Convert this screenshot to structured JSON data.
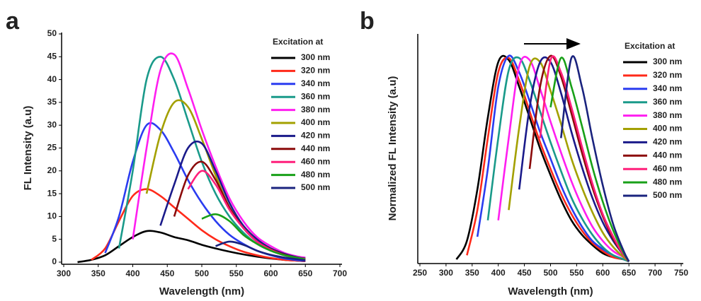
{
  "chart_data": [
    {
      "type": "line",
      "panel_label": "a",
      "x_label": "Wavelength (nm)",
      "y_label": "FL Intensity (a.u)",
      "legend_title": "Excitation at",
      "legend": "upper right",
      "x": [
        300,
        320,
        340,
        360,
        380,
        400,
        420,
        440,
        460,
        480,
        500,
        520,
        540,
        560,
        580,
        600,
        620,
        640,
        650
      ],
      "xlim": [
        300,
        700
      ],
      "xticks": [
        300,
        350,
        400,
        450,
        500,
        550,
        600,
        650,
        700
      ],
      "ylim": [
        0,
        50
      ],
      "yticks": [
        0,
        5,
        10,
        15,
        20,
        25,
        30,
        35,
        40,
        45,
        50
      ],
      "series": [
        {
          "name": "300 nm",
          "color": "#000000",
          "values": [
            null,
            0,
            0.5,
            1.5,
            3.5,
            5.5,
            6.8,
            6.5,
            5.5,
            4.8,
            3.8,
            3,
            2.3,
            1.7,
            1.2,
            0.8,
            0.5,
            0.3,
            0.2
          ]
        },
        {
          "name": "320 nm",
          "color": "#ff2a1a",
          "values": [
            null,
            null,
            0.5,
            3,
            9,
            14.5,
            16,
            14.5,
            12,
            9.5,
            7,
            5,
            3.5,
            2.3,
            1.5,
            0.9,
            0.5,
            0.3,
            0.2
          ]
        },
        {
          "name": "340 nm",
          "color": "#2a3cf0",
          "values": [
            null,
            null,
            null,
            2,
            10,
            22,
            30,
            29,
            24,
            18,
            13,
            9,
            6,
            4,
            2.5,
            1.5,
            0.8,
            0.4,
            0.3
          ]
        },
        {
          "name": "360 nm",
          "color": "#1a9a8a",
          "values": [
            null,
            null,
            null,
            null,
            3,
            20,
            40,
            45,
            40,
            31,
            22,
            15,
            10,
            6.5,
            4,
            2.5,
            1.5,
            0.8,
            0.6
          ]
        },
        {
          "name": "380 nm",
          "color": "#ff1ef0",
          "values": [
            null,
            null,
            null,
            null,
            null,
            5,
            25,
            42,
            45.5,
            38,
            29,
            21,
            14,
            9,
            5.5,
            3.5,
            2,
            1.2,
            1
          ]
        },
        {
          "name": "400 nm",
          "color": "#a3a000",
          "values": [
            null,
            null,
            null,
            null,
            null,
            null,
            15,
            28,
            35,
            34,
            27,
            19,
            12,
            8,
            5,
            3,
            1.8,
            1,
            0.8
          ]
        },
        {
          "name": "420 nm",
          "color": "#1a1a8a",
          "values": [
            null,
            null,
            null,
            null,
            null,
            null,
            null,
            8,
            17,
            25,
            26,
            20,
            13,
            8,
            5,
            3,
            1.8,
            1,
            0.8
          ]
        },
        {
          "name": "440 nm",
          "color": "#8b0a0a",
          "values": [
            null,
            null,
            null,
            null,
            null,
            null,
            null,
            null,
            10,
            19,
            22,
            18,
            12,
            7.5,
            4.5,
            2.8,
            1.6,
            0.9,
            0.7
          ]
        },
        {
          "name": "460 nm",
          "color": "#ff1f7a",
          "values": [
            null,
            null,
            null,
            null,
            null,
            null,
            null,
            null,
            null,
            16,
            20,
            17,
            11.5,
            7.5,
            4.5,
            2.7,
            1.5,
            0.9,
            0.7
          ]
        },
        {
          "name": "480 nm",
          "color": "#18a018",
          "values": [
            null,
            null,
            null,
            null,
            null,
            null,
            null,
            null,
            null,
            null,
            9.5,
            10.5,
            9,
            6,
            4,
            2.5,
            1.5,
            0.9,
            0.6
          ]
        },
        {
          "name": "500 nm",
          "color": "#1a237e",
          "values": [
            null,
            null,
            null,
            null,
            null,
            null,
            null,
            null,
            null,
            null,
            null,
            3.5,
            4.5,
            3.8,
            2.5,
            1.6,
            1,
            0.6,
            0.4
          ]
        }
      ]
    },
    {
      "type": "line",
      "panel_label": "b",
      "x_label": "Wavelength (nm)",
      "y_label": "Normalized FL Intensity (a.u)",
      "legend_title": "Excitation at",
      "legend": "upper right",
      "x": [
        300,
        320,
        340,
        360,
        380,
        400,
        420,
        440,
        460,
        480,
        500,
        520,
        540,
        560,
        580,
        600,
        620,
        640,
        650
      ],
      "xlim": [
        250,
        750
      ],
      "xticks": [
        250,
        300,
        350,
        400,
        450,
        500,
        550,
        600,
        650,
        700,
        750
      ],
      "ylim": [
        0,
        1.1
      ],
      "series": [
        {
          "name": "300 nm",
          "color": "#000000",
          "values": [
            null,
            0.01,
            0.1,
            0.35,
            0.7,
            0.97,
            0.98,
            0.85,
            0.7,
            0.55,
            0.42,
            0.3,
            0.2,
            0.13,
            0.08,
            0.04,
            0.02,
            0.01,
            0
          ]
        },
        {
          "name": "320 nm",
          "color": "#ff2a1a",
          "values": [
            null,
            null,
            0.03,
            0.25,
            0.6,
            0.92,
            0.99,
            0.88,
            0.73,
            0.58,
            0.45,
            0.33,
            0.23,
            0.15,
            0.09,
            0.05,
            0.02,
            0.01,
            0
          ]
        },
        {
          "name": "340 nm",
          "color": "#2a3cf0",
          "values": [
            null,
            null,
            null,
            0.12,
            0.45,
            0.85,
            1,
            0.92,
            0.78,
            0.63,
            0.5,
            0.37,
            0.26,
            0.17,
            0.1,
            0.06,
            0.03,
            0.01,
            0
          ]
        },
        {
          "name": "360 nm",
          "color": "#1a9a8a",
          "values": [
            null,
            null,
            null,
            null,
            0.2,
            0.6,
            0.93,
            0.99,
            0.88,
            0.73,
            0.58,
            0.44,
            0.31,
            0.21,
            0.13,
            0.07,
            0.03,
            0.01,
            0
          ]
        },
        {
          "name": "380 nm",
          "color": "#ff1ef0",
          "values": [
            null,
            null,
            null,
            null,
            null,
            0.2,
            0.6,
            0.95,
            0.98,
            0.84,
            0.68,
            0.53,
            0.39,
            0.27,
            0.17,
            0.1,
            0.05,
            0.02,
            0
          ]
        },
        {
          "name": "400 nm",
          "color": "#a3a000",
          "values": [
            null,
            null,
            null,
            null,
            null,
            null,
            0.25,
            0.65,
            0.95,
            0.97,
            0.83,
            0.67,
            0.5,
            0.36,
            0.24,
            0.14,
            0.07,
            0.02,
            0
          ]
        },
        {
          "name": "420 nm",
          "color": "#1a1a8a",
          "values": [
            null,
            null,
            null,
            null,
            null,
            null,
            null,
            0.35,
            0.75,
            0.97,
            0.97,
            0.82,
            0.63,
            0.46,
            0.31,
            0.19,
            0.1,
            0.03,
            0
          ]
        },
        {
          "name": "440 nm",
          "color": "#8b0a0a",
          "values": [
            null,
            null,
            null,
            null,
            null,
            null,
            null,
            null,
            0.45,
            0.85,
            1,
            0.9,
            0.72,
            0.53,
            0.36,
            0.22,
            0.11,
            0.03,
            0
          ]
        },
        {
          "name": "460 nm",
          "color": "#ff1f7a",
          "values": [
            null,
            null,
            null,
            null,
            null,
            null,
            null,
            null,
            null,
            0.6,
            0.98,
            0.92,
            0.75,
            0.56,
            0.38,
            0.23,
            0.12,
            0.03,
            0
          ]
        },
        {
          "name": "480 nm",
          "color": "#18a018",
          "values": [
            null,
            null,
            null,
            null,
            null,
            null,
            null,
            null,
            null,
            null,
            0.75,
            0.99,
            0.85,
            0.66,
            0.46,
            0.29,
            0.15,
            0.04,
            0
          ]
        },
        {
          "name": "500 nm",
          "color": "#1a237e",
          "values": [
            null,
            null,
            null,
            null,
            null,
            null,
            null,
            null,
            null,
            null,
            null,
            0.6,
            0.99,
            0.85,
            0.6,
            0.37,
            0.18,
            0.05,
            0
          ]
        }
      ]
    }
  ]
}
